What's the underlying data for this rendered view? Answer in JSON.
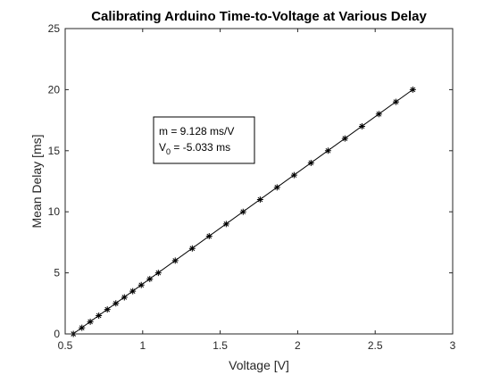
{
  "chart_data": {
    "type": "scatter",
    "title": "Calibrating Arduino Time-to-Voltage at Various Delay",
    "xlabel": "Voltage [V]",
    "ylabel": "Mean Delay [ms]",
    "xlim": [
      0.5,
      3
    ],
    "ylim": [
      0,
      25
    ],
    "xticks": [
      "0.5",
      "1",
      "1.5",
      "2",
      "2.5",
      "3"
    ],
    "yticks": [
      "0",
      "5",
      "10",
      "15",
      "20",
      "25"
    ],
    "grid": false,
    "series": [
      {
        "marker": "asterisk",
        "x": [
          0.553,
          0.608,
          0.662,
          0.717,
          0.772,
          0.827,
          0.882,
          0.936,
          0.991,
          1.046,
          1.101,
          1.21,
          1.32,
          1.429,
          1.539,
          1.648,
          1.758,
          1.867,
          1.977,
          2.086,
          2.196,
          2.305,
          2.415,
          2.524,
          2.634,
          2.743
        ],
        "y": [
          0,
          0.5,
          1,
          1.5,
          2,
          2.5,
          3,
          3.5,
          4,
          4.5,
          5,
          6,
          7,
          8,
          9,
          10,
          11,
          12,
          13,
          14,
          15,
          16,
          17,
          18,
          19,
          20
        ]
      },
      {
        "type": "line",
        "x": [
          0.5514,
          2.7425
        ],
        "y": [
          0,
          20
        ]
      }
    ],
    "annotation": {
      "line1": "m = 9.128 ms/V",
      "line2_prefix": "V",
      "line2_sub": "0",
      "line2_rest": " = -5.033 ms"
    }
  }
}
